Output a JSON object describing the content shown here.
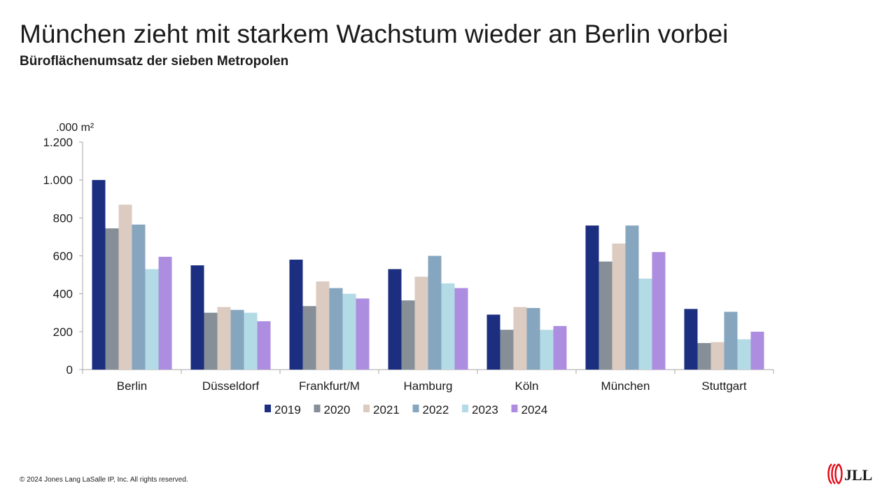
{
  "header": {
    "title": "München zieht mit starkem Wachstum wieder an Berlin vorbei",
    "subtitle": "Büroflächenumsatz der sieben Metropolen"
  },
  "footer": {
    "copyright": "© 2024 Jones Lang LaSalle IP, Inc. All rights reserved."
  },
  "logo": {
    "text": "JLL",
    "color": "#e30613"
  },
  "chart_data": {
    "type": "bar",
    "title": "",
    "ylabel": ".000 m²",
    "ylim": [
      0,
      1200
    ],
    "yticks": [
      0,
      200,
      400,
      600,
      800,
      1000,
      1200
    ],
    "ytick_labels": [
      "0",
      "200",
      "400",
      "600",
      "800",
      "1.000",
      "1.200"
    ],
    "grid": false,
    "legend_position": "bottom",
    "categories": [
      "Berlin",
      "Düsseldorf",
      "Frankfurt/M",
      "Hamburg",
      "Köln",
      "München",
      "Stuttgart"
    ],
    "series": [
      {
        "name": "2019",
        "color": "#1b2e80",
        "values": [
          1000,
          550,
          580,
          530,
          290,
          760,
          320
        ]
      },
      {
        "name": "2020",
        "color": "#868f97",
        "values": [
          745,
          300,
          335,
          365,
          210,
          570,
          140
        ]
      },
      {
        "name": "2021",
        "color": "#dccbc0",
        "values": [
          870,
          330,
          465,
          490,
          330,
          665,
          145
        ]
      },
      {
        "name": "2022",
        "color": "#86a6c0",
        "values": [
          765,
          315,
          430,
          600,
          325,
          760,
          305
        ]
      },
      {
        "name": "2023",
        "color": "#b3dbe6",
        "values": [
          530,
          300,
          400,
          455,
          210,
          480,
          160
        ]
      },
      {
        "name": "2024",
        "color": "#ad8ddf",
        "values": [
          595,
          255,
          375,
          430,
          230,
          620,
          200
        ]
      }
    ]
  }
}
